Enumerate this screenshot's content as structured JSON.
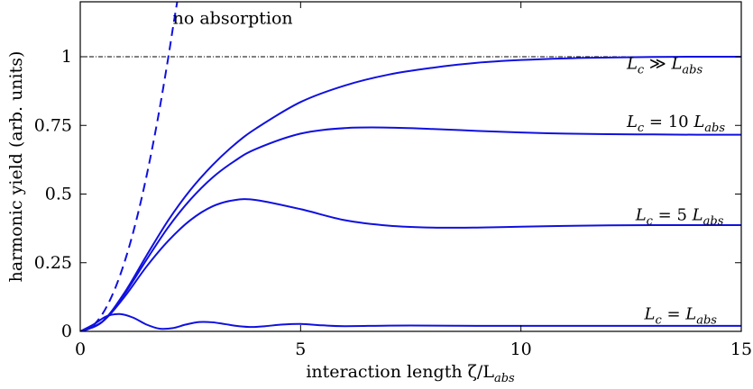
{
  "chart_data": {
    "type": "line",
    "xlabel": "interaction length ζ/L",
    "xlabel_sub": "abs",
    "ylabel": "harmonic yield (arb. units)",
    "xlim": [
      0,
      15
    ],
    "ylim": [
      0,
      1.2
    ],
    "x_ticks": [
      0,
      5,
      10,
      15
    ],
    "x_tick_labels": [
      "0",
      "5",
      "10",
      "15"
    ],
    "y_ticks": [
      0,
      0.25,
      0.5,
      0.75,
      1
    ],
    "y_tick_labels": [
      "0",
      "0.25",
      "0.5",
      "0.75",
      "1"
    ],
    "grid": false,
    "reference_line": {
      "y": 1,
      "style": "dash-dot"
    },
    "annotation": {
      "text": "no absorption",
      "x": 2.1,
      "y": 1.12
    },
    "series": [
      {
        "label": "L_c ≫ L_abs",
        "label_parts": {
          "lead": "L",
          "lead_sub": "c",
          "op": " ≫ ",
          "coef": "",
          "tail": "L",
          "tail_sub": "abs"
        },
        "label_at": {
          "x": 12.4,
          "y": 0.955
        },
        "style": "solid",
        "color": "#1010e0",
        "x": [
          0,
          0.5,
          1,
          1.5,
          2,
          2.5,
          3,
          3.5,
          4,
          5,
          6,
          7,
          8,
          9,
          10,
          11,
          12,
          13,
          14,
          15
        ],
        "y": [
          0,
          0.035,
          0.14,
          0.275,
          0.405,
          0.515,
          0.605,
          0.68,
          0.74,
          0.835,
          0.895,
          0.935,
          0.96,
          0.978,
          0.988,
          0.994,
          0.997,
          0.999,
          1.0,
          1.0
        ]
      },
      {
        "label": "L_c = 10 L_abs",
        "label_parts": {
          "lead": "L",
          "lead_sub": "c",
          "op": " = ",
          "coef": "10 ",
          "tail": "L",
          "tail_sub": "abs"
        },
        "label_at": {
          "x": 12.4,
          "y": 0.745
        },
        "style": "solid",
        "color": "#1010e0",
        "x": [
          0,
          0.5,
          1,
          1.5,
          2,
          2.5,
          3,
          3.5,
          4,
          5,
          6,
          7,
          8,
          9,
          10,
          11,
          12,
          13,
          14,
          15
        ],
        "y": [
          0,
          0.035,
          0.135,
          0.26,
          0.38,
          0.48,
          0.56,
          0.62,
          0.665,
          0.72,
          0.74,
          0.742,
          0.737,
          0.73,
          0.724,
          0.72,
          0.718,
          0.717,
          0.716,
          0.716
        ]
      },
      {
        "label": "L_c = 5 L_abs",
        "label_parts": {
          "lead": "L",
          "lead_sub": "c",
          "op": " = ",
          "coef": "5 ",
          "tail": "L",
          "tail_sub": "abs"
        },
        "label_at": {
          "x": 12.6,
          "y": 0.405
        },
        "style": "solid",
        "color": "#1010e0",
        "x": [
          0,
          0.5,
          1,
          1.5,
          2,
          2.5,
          3,
          3.5,
          4,
          5,
          6,
          7,
          8,
          9,
          10,
          11,
          12,
          13,
          14,
          15
        ],
        "y": [
          0,
          0.035,
          0.125,
          0.235,
          0.33,
          0.405,
          0.455,
          0.478,
          0.478,
          0.445,
          0.405,
          0.385,
          0.378,
          0.378,
          0.381,
          0.384,
          0.386,
          0.387,
          0.387,
          0.387
        ]
      },
      {
        "label": "L_c = L_abs",
        "label_parts": {
          "lead": "L",
          "lead_sub": "c",
          "op": " = ",
          "coef": "",
          "tail": "L",
          "tail_sub": "abs"
        },
        "label_at": {
          "x": 12.8,
          "y": 0.045
        },
        "style": "solid",
        "color": "#1010e0",
        "x": [
          0,
          0.3,
          0.6,
          0.9,
          1.2,
          1.5,
          1.8,
          2.1,
          2.4,
          2.7,
          3.0,
          3.3,
          3.6,
          3.9,
          4.2,
          4.6,
          5.0,
          5.5,
          6.0,
          7,
          8,
          9,
          10,
          12,
          15
        ],
        "y": [
          0,
          0.025,
          0.055,
          0.063,
          0.05,
          0.025,
          0.01,
          0.012,
          0.025,
          0.034,
          0.033,
          0.026,
          0.019,
          0.016,
          0.019,
          0.025,
          0.027,
          0.022,
          0.019,
          0.021,
          0.021,
          0.02,
          0.02,
          0.02,
          0.02
        ]
      },
      {
        "label": "no absorption",
        "style": "dashed",
        "color": "#1010e0",
        "x": [
          0,
          0.2,
          0.4,
          0.6,
          0.8,
          1.0,
          1.2,
          1.4,
          1.6,
          1.8,
          2.0,
          2.1,
          2.2
        ],
        "y": [
          0,
          0.01,
          0.04,
          0.09,
          0.16,
          0.25,
          0.36,
          0.49,
          0.64,
          0.81,
          1.0,
          1.1025,
          1.2
        ]
      }
    ]
  }
}
